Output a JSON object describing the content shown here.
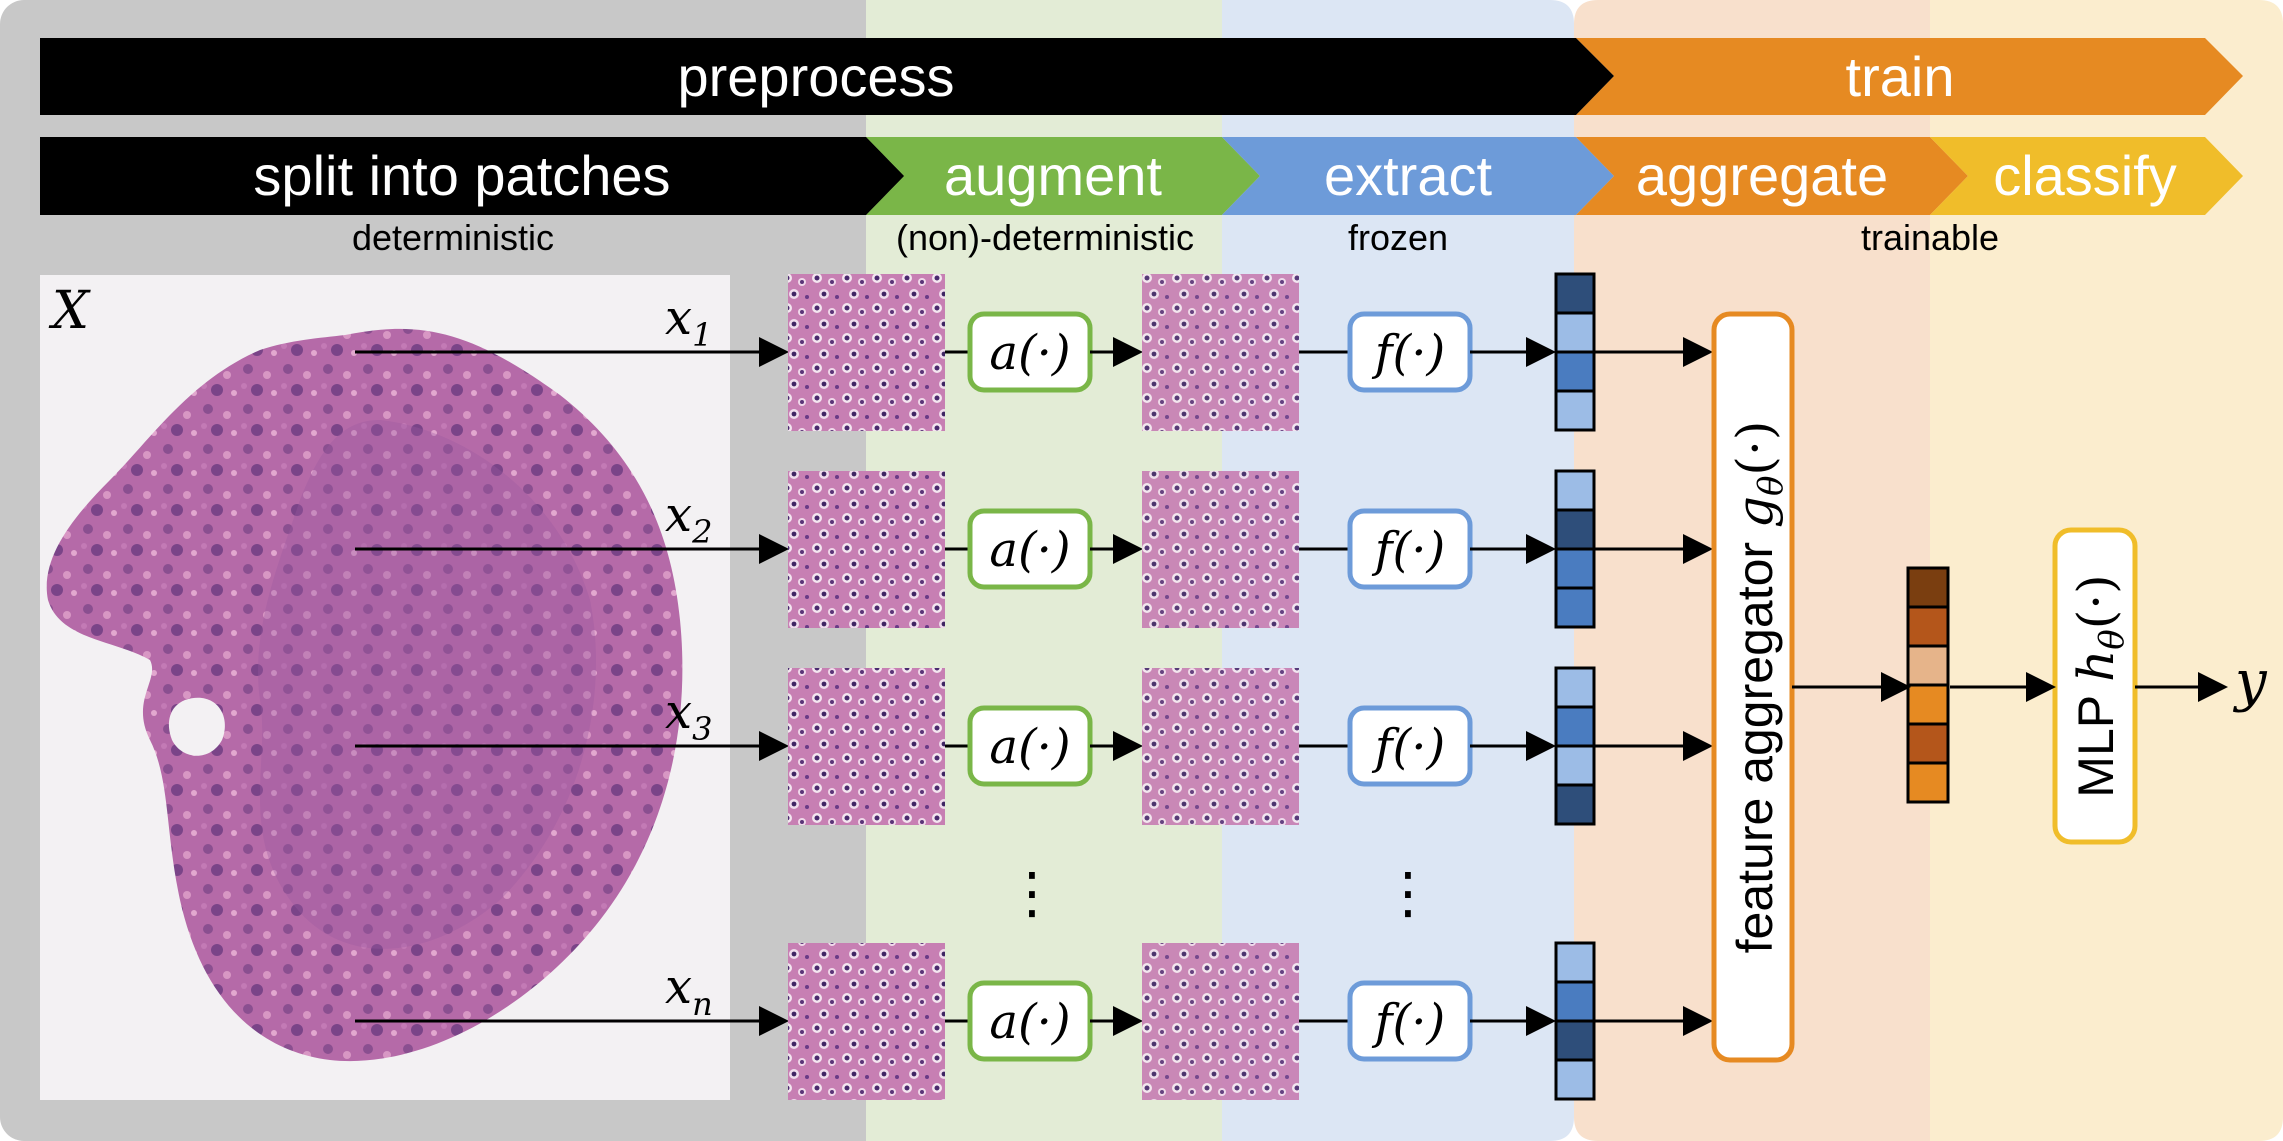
{
  "stages": {
    "preprocess": "preprocess",
    "train": "train"
  },
  "steps": {
    "split": "split into patches",
    "augment": "augment",
    "extract": "extract",
    "aggregate": "aggregate",
    "classify": "classify"
  },
  "properties": {
    "split": "deterministic",
    "augment": "(non)-deterministic",
    "extract": "frozen",
    "train": "trainable"
  },
  "slide_label": "X",
  "patches": [
    {
      "label": "x",
      "sub": "1"
    },
    {
      "label": "x",
      "sub": "2"
    },
    {
      "label": "x",
      "sub": "3"
    },
    {
      "label": "x",
      "sub": "n"
    }
  ],
  "augment_fn": "a(·)",
  "extract_fn": "f(·)",
  "ellipsis": "⋮",
  "aggregator": {
    "text": "feature aggregator ",
    "fn": "g",
    "sub": "θ",
    "args": "(·)"
  },
  "mlp": {
    "text": "MLP ",
    "fn": "h",
    "sub": "θ",
    "args": "(·)"
  },
  "output": "y",
  "colors": {
    "gray_bg": "#c8c8c8",
    "green_bg": "#e3ecd6",
    "blue_bg": "#dce6f4",
    "orange_bg": "#f8e0cc",
    "yellow_bg": "#fbedce",
    "green": "#7ab648",
    "blue": "#6d9bd9",
    "orange": "#e68a22",
    "yellow": "#f0bd2a",
    "feat_dark": "#2e4e7a",
    "feat_mid": "#4a7cc0",
    "feat_light": "#9cbce6"
  }
}
